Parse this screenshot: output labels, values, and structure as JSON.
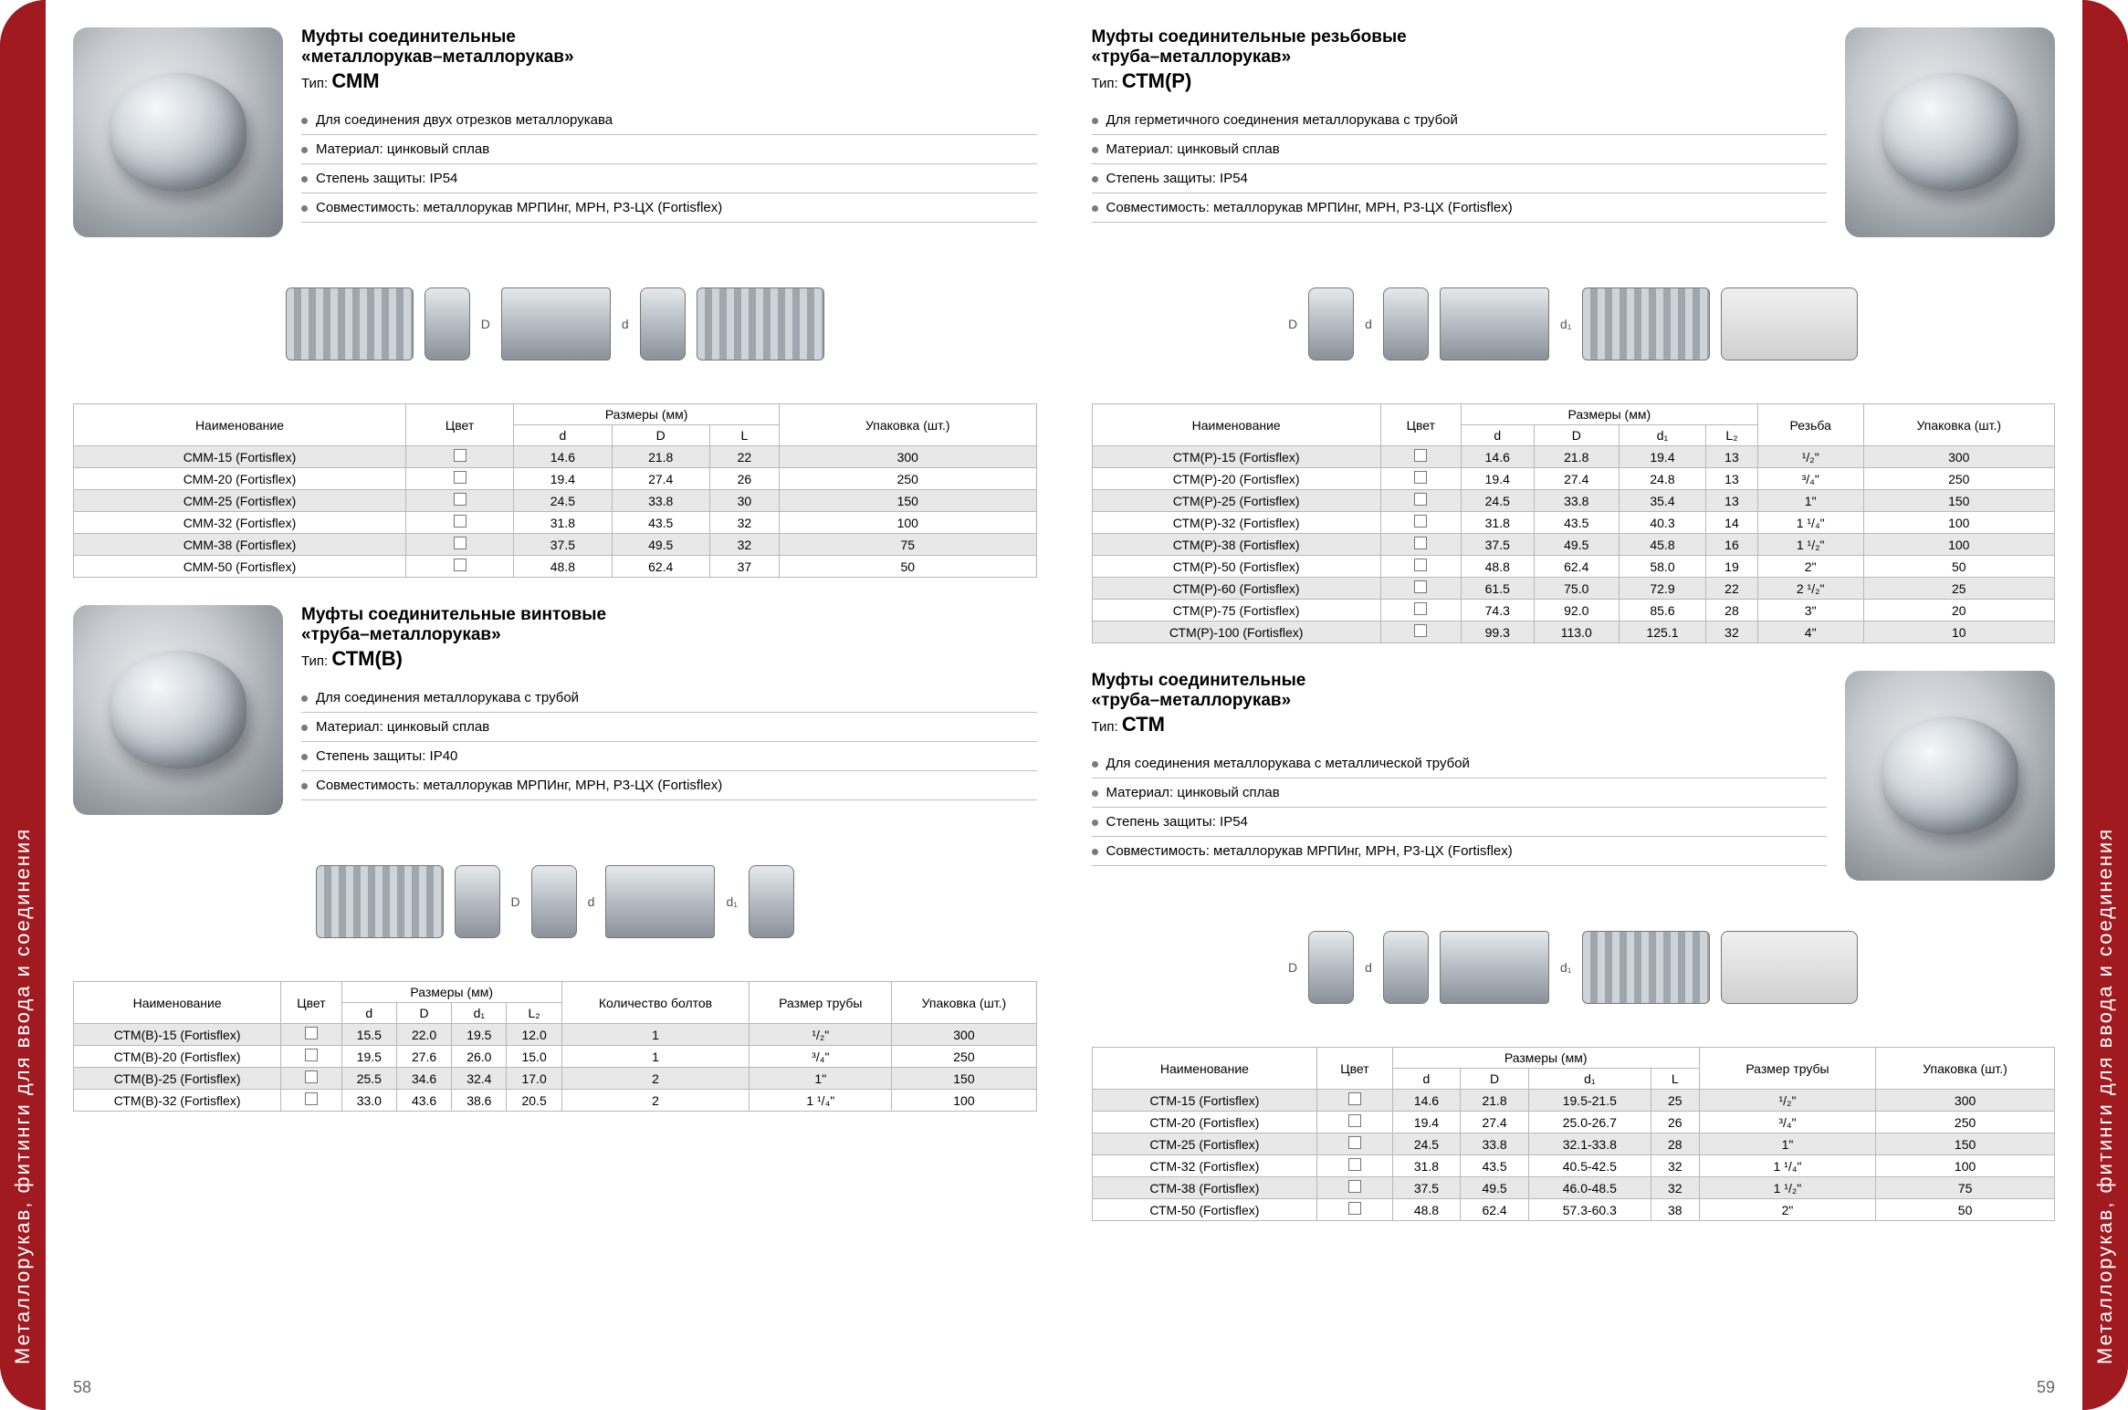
{
  "side_label": "Металлорукав, фитинги для ввода и соединения",
  "page_left": "58",
  "page_right": "59",
  "colors": {
    "red": "#a01a1f",
    "dark": "#3a3a3a",
    "row_alt": "#e8e8e8",
    "border": "#b8b8b8"
  },
  "cmm": {
    "title1": "Муфты соединительные",
    "title2": "«металлорукав–металлорукав»",
    "type_label": "Тип:",
    "type_code": "СММ",
    "bullets": [
      "Для соединения двух отрезков металлорукава",
      "Материал: цинковый сплав",
      "Степень защиты: IP54",
      "Совместимость: металлорукав МРПИнг, МРН, Р3-ЦХ (Fortisflex)"
    ],
    "headers": {
      "name": "Наименование",
      "color": "Цвет",
      "dim": "Размеры (мм)",
      "d": "d",
      "D": "D",
      "L": "L",
      "pack": "Упаковка (шт.)"
    },
    "rows": [
      {
        "name": "СММ-15 (Fortisflex)",
        "d": "14.6",
        "D": "21.8",
        "L": "22",
        "pack": "300"
      },
      {
        "name": "СММ-20 (Fortisflex)",
        "d": "19.4",
        "D": "27.4",
        "L": "26",
        "pack": "250"
      },
      {
        "name": "СММ-25 (Fortisflex)",
        "d": "24.5",
        "D": "33.8",
        "L": "30",
        "pack": "150"
      },
      {
        "name": "СММ-32 (Fortisflex)",
        "d": "31.8",
        "D": "43.5",
        "L": "32",
        "pack": "100"
      },
      {
        "name": "СММ-38 (Fortisflex)",
        "d": "37.5",
        "D": "49.5",
        "L": "32",
        "pack": "75"
      },
      {
        "name": "СММ-50 (Fortisflex)",
        "d": "48.8",
        "D": "62.4",
        "L": "37",
        "pack": "50"
      }
    ]
  },
  "ctmp": {
    "title1": "Муфты соединительные резьбовые",
    "title2": "«труба–металлорукав»",
    "type_label": "Тип:",
    "type_code": "СТМ(Р)",
    "bullets": [
      "Для герметичного соединения металлорукава с трубой",
      "Материал: цинковый сплав",
      "Степень защиты: IP54",
      "Совместимость: металлорукав МРПИнг, МРН, Р3-ЦХ (Fortisflex)"
    ],
    "headers": {
      "name": "Наименование",
      "color": "Цвет",
      "dim": "Размеры (мм)",
      "d": "d",
      "D": "D",
      "d1": "d₁",
      "L2": "L₂",
      "thread": "Резьба",
      "pack": "Упаковка (шт.)"
    },
    "rows": [
      {
        "name": "СТМ(Р)-15 (Fortisflex)",
        "d": "14.6",
        "D": "21.8",
        "d1": "19.4",
        "L2": "13",
        "th": "¹/₂\"",
        "pack": "300"
      },
      {
        "name": "СТМ(Р)-20 (Fortisflex)",
        "d": "19.4",
        "D": "27.4",
        "d1": "24.8",
        "L2": "13",
        "th": "³/₄\"",
        "pack": "250"
      },
      {
        "name": "СТМ(Р)-25 (Fortisflex)",
        "d": "24.5",
        "D": "33.8",
        "d1": "35.4",
        "L2": "13",
        "th": "1\"",
        "pack": "150"
      },
      {
        "name": "СТМ(Р)-32 (Fortisflex)",
        "d": "31.8",
        "D": "43.5",
        "d1": "40.3",
        "L2": "14",
        "th": "1 ¹/₄\"",
        "pack": "100"
      },
      {
        "name": "СТМ(Р)-38 (Fortisflex)",
        "d": "37.5",
        "D": "49.5",
        "d1": "45.8",
        "L2": "16",
        "th": "1 ¹/₂\"",
        "pack": "100"
      },
      {
        "name": "СТМ(Р)-50 (Fortisflex)",
        "d": "48.8",
        "D": "62.4",
        "d1": "58.0",
        "L2": "19",
        "th": "2\"",
        "pack": "50"
      },
      {
        "name": "СТМ(Р)-60 (Fortisflex)",
        "d": "61.5",
        "D": "75.0",
        "d1": "72.9",
        "L2": "22",
        "th": "2 ¹/₂\"",
        "pack": "25"
      },
      {
        "name": "СТМ(Р)-75 (Fortisflex)",
        "d": "74.3",
        "D": "92.0",
        "d1": "85.6",
        "L2": "28",
        "th": "3\"",
        "pack": "20"
      },
      {
        "name": "СТМ(Р)-100 (Fortisflex)",
        "d": "99.3",
        "D": "113.0",
        "d1": "125.1",
        "L2": "32",
        "th": "4\"",
        "pack": "10"
      }
    ]
  },
  "ctmb": {
    "title1": "Муфты соединительные винтовые",
    "title2": "«труба–металлорукав»",
    "type_label": "Тип:",
    "type_code": "СТМ(В)",
    "bullets": [
      "Для соединения металлорукава с трубой",
      "Материал: цинковый сплав",
      "Степень защиты: IP40",
      "Совместимость: металлорукав МРПИнг, МРН, Р3-ЦХ (Fortisflex)"
    ],
    "headers": {
      "name": "Наименование",
      "color": "Цвет",
      "dim": "Размеры (мм)",
      "d": "d",
      "D": "D",
      "d1": "d₁",
      "L2": "L₂",
      "bolts": "Количество болтов",
      "pipe": "Размер трубы",
      "pack": "Упаковка (шт.)"
    },
    "rows": [
      {
        "name": "СТМ(В)-15 (Fortisflex)",
        "d": "15.5",
        "D": "22.0",
        "d1": "19.5",
        "L2": "12.0",
        "b": "1",
        "p": "¹/₂\"",
        "pack": "300"
      },
      {
        "name": "СТМ(В)-20 (Fortisflex)",
        "d": "19.5",
        "D": "27.6",
        "d1": "26.0",
        "L2": "15.0",
        "b": "1",
        "p": "³/₄\"",
        "pack": "250"
      },
      {
        "name": "СТМ(В)-25 (Fortisflex)",
        "d": "25.5",
        "D": "34.6",
        "d1": "32.4",
        "L2": "17.0",
        "b": "2",
        "p": "1\"",
        "pack": "150"
      },
      {
        "name": "СТМ(В)-32 (Fortisflex)",
        "d": "33.0",
        "D": "43.6",
        "d1": "38.6",
        "L2": "20.5",
        "b": "2",
        "p": "1 ¹/₄\"",
        "pack": "100"
      }
    ]
  },
  "ctm": {
    "title1": "Муфты соединительные",
    "title2": "«труба–металлорукав»",
    "type_label": "Тип:",
    "type_code": "СТМ",
    "bullets": [
      "Для соединения металлорукава с металлической трубой",
      "Материал: цинковый сплав",
      "Степень защиты: IP54",
      "Совместимость: металлорукав МРПИнг, МРН, Р3-ЦХ (Fortisflex)"
    ],
    "headers": {
      "name": "Наименование",
      "color": "Цвет",
      "dim": "Размеры (мм)",
      "d": "d",
      "D": "D",
      "d1": "d₁",
      "L": "L",
      "pipe": "Размер трубы",
      "pack": "Упаковка (шт.)"
    },
    "rows": [
      {
        "name": "СТМ-15 (Fortisflex)",
        "d": "14.6",
        "D": "21.8",
        "d1": "19.5-21.5",
        "L": "25",
        "p": "¹/₂\"",
        "pack": "300"
      },
      {
        "name": "СТМ-20 (Fortisflex)",
        "d": "19.4",
        "D": "27.4",
        "d1": "25.0-26.7",
        "L": "26",
        "p": "³/₄\"",
        "pack": "250"
      },
      {
        "name": "СТМ-25 (Fortisflex)",
        "d": "24.5",
        "D": "33.8",
        "d1": "32.1-33.8",
        "L": "28",
        "p": "1\"",
        "pack": "150"
      },
      {
        "name": "СТМ-32 (Fortisflex)",
        "d": "31.8",
        "D": "43.5",
        "d1": "40.5-42.5",
        "L": "32",
        "p": "1 ¹/₄\"",
        "pack": "100"
      },
      {
        "name": "СТМ-38 (Fortisflex)",
        "d": "37.5",
        "D": "49.5",
        "d1": "46.0-48.5",
        "L": "32",
        "p": "1 ¹/₂\"",
        "pack": "75"
      },
      {
        "name": "СТМ-50 (Fortisflex)",
        "d": "48.8",
        "D": "62.4",
        "d1": "57.3-60.3",
        "L": "38",
        "p": "2\"",
        "pack": "50"
      }
    ]
  }
}
